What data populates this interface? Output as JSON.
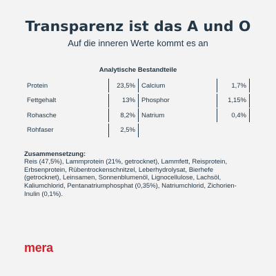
{
  "header": {
    "title": "Transparenz ist das A und O",
    "subtitle": "Auf die inneren Werte kommt es an"
  },
  "analysis": {
    "title": "Analytische Bestandteile",
    "rows": [
      {
        "left": {
          "name": "Protein",
          "value": "23,5%"
        },
        "right": {
          "name": "Calcium",
          "value": "1,7%"
        }
      },
      {
        "left": {
          "name": "Fettgehalt",
          "value": "13%"
        },
        "right": {
          "name": "Phosphor",
          "value": "1,15%"
        }
      },
      {
        "left": {
          "name": "Rohasche",
          "value": "8,2%"
        },
        "right": {
          "name": "Natrium",
          "value": "0,4%"
        }
      },
      {
        "left": {
          "name": "Rohfaser",
          "value": "2,5%"
        },
        "right": null
      }
    ]
  },
  "composition": {
    "title": "Zusammensetzung:",
    "text": "Reis (47,5%), Lammprotein (21%, getrocknet), Lammfett, Reisprotein, Erbsenprotein, Rübentrockenschnitzel, Leberhydrolysat, Bierhefe (getrocknet), Leinsamen, Sonnenblumenöl, Lignocellulose, Lachsöl, Kaliumchlorid, Pentanatriumphosphat (0,35%), Natriumchlorid, Zichorien-Inulin (0,1%)."
  },
  "brand": {
    "logo_text": "mera",
    "logo_color": "#d2232a"
  },
  "colors": {
    "text": "#243746",
    "background": "#f3f3f3"
  }
}
